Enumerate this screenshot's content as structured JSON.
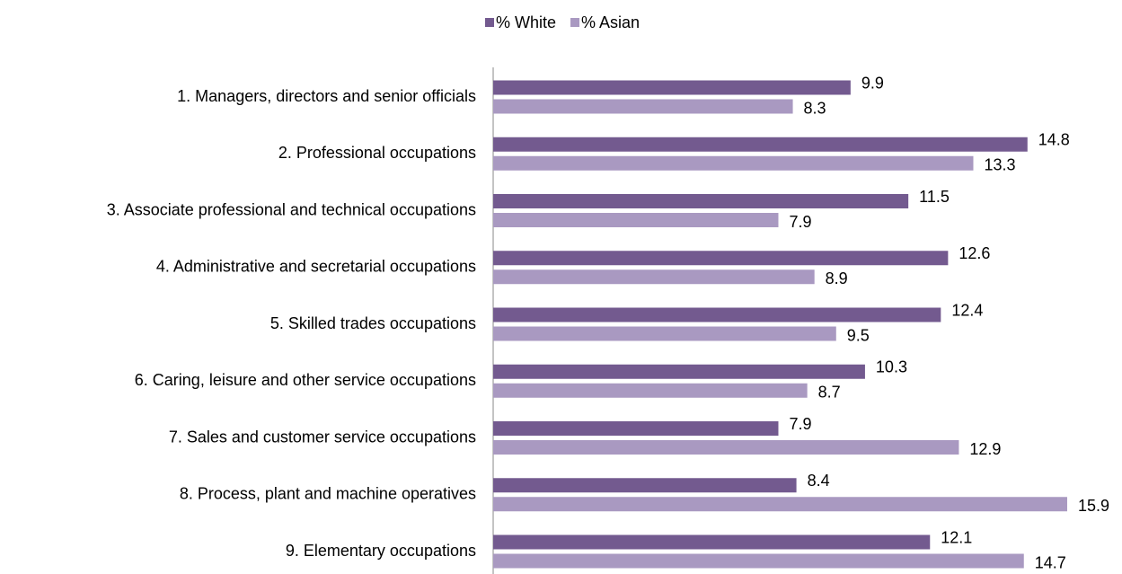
{
  "chart_data": {
    "type": "hbar",
    "categories": [
      "1. Managers, directors and senior officials",
      "2. Professional occupations",
      "3. Associate professional and technical occupations",
      "4. Administrative and secretarial occupations",
      "5. Skilled trades occupations",
      "6. Caring, leisure and other service occupations",
      "7. Sales and customer service occupations",
      "8. Process, plant and machine operatives",
      "9. Elementary occupations"
    ],
    "series": [
      {
        "name": "% White",
        "color": "#735a8f",
        "values": [
          9.9,
          14.8,
          11.5,
          12.6,
          12.4,
          10.3,
          7.9,
          8.4,
          12.1
        ]
      },
      {
        "name": "% Asian",
        "color": "#a999c1",
        "values": [
          8.3,
          13.3,
          7.9,
          8.9,
          9.5,
          8.7,
          12.9,
          15.9,
          14.7
        ]
      }
    ],
    "xlim": [
      0,
      16
    ],
    "legend": "top"
  }
}
